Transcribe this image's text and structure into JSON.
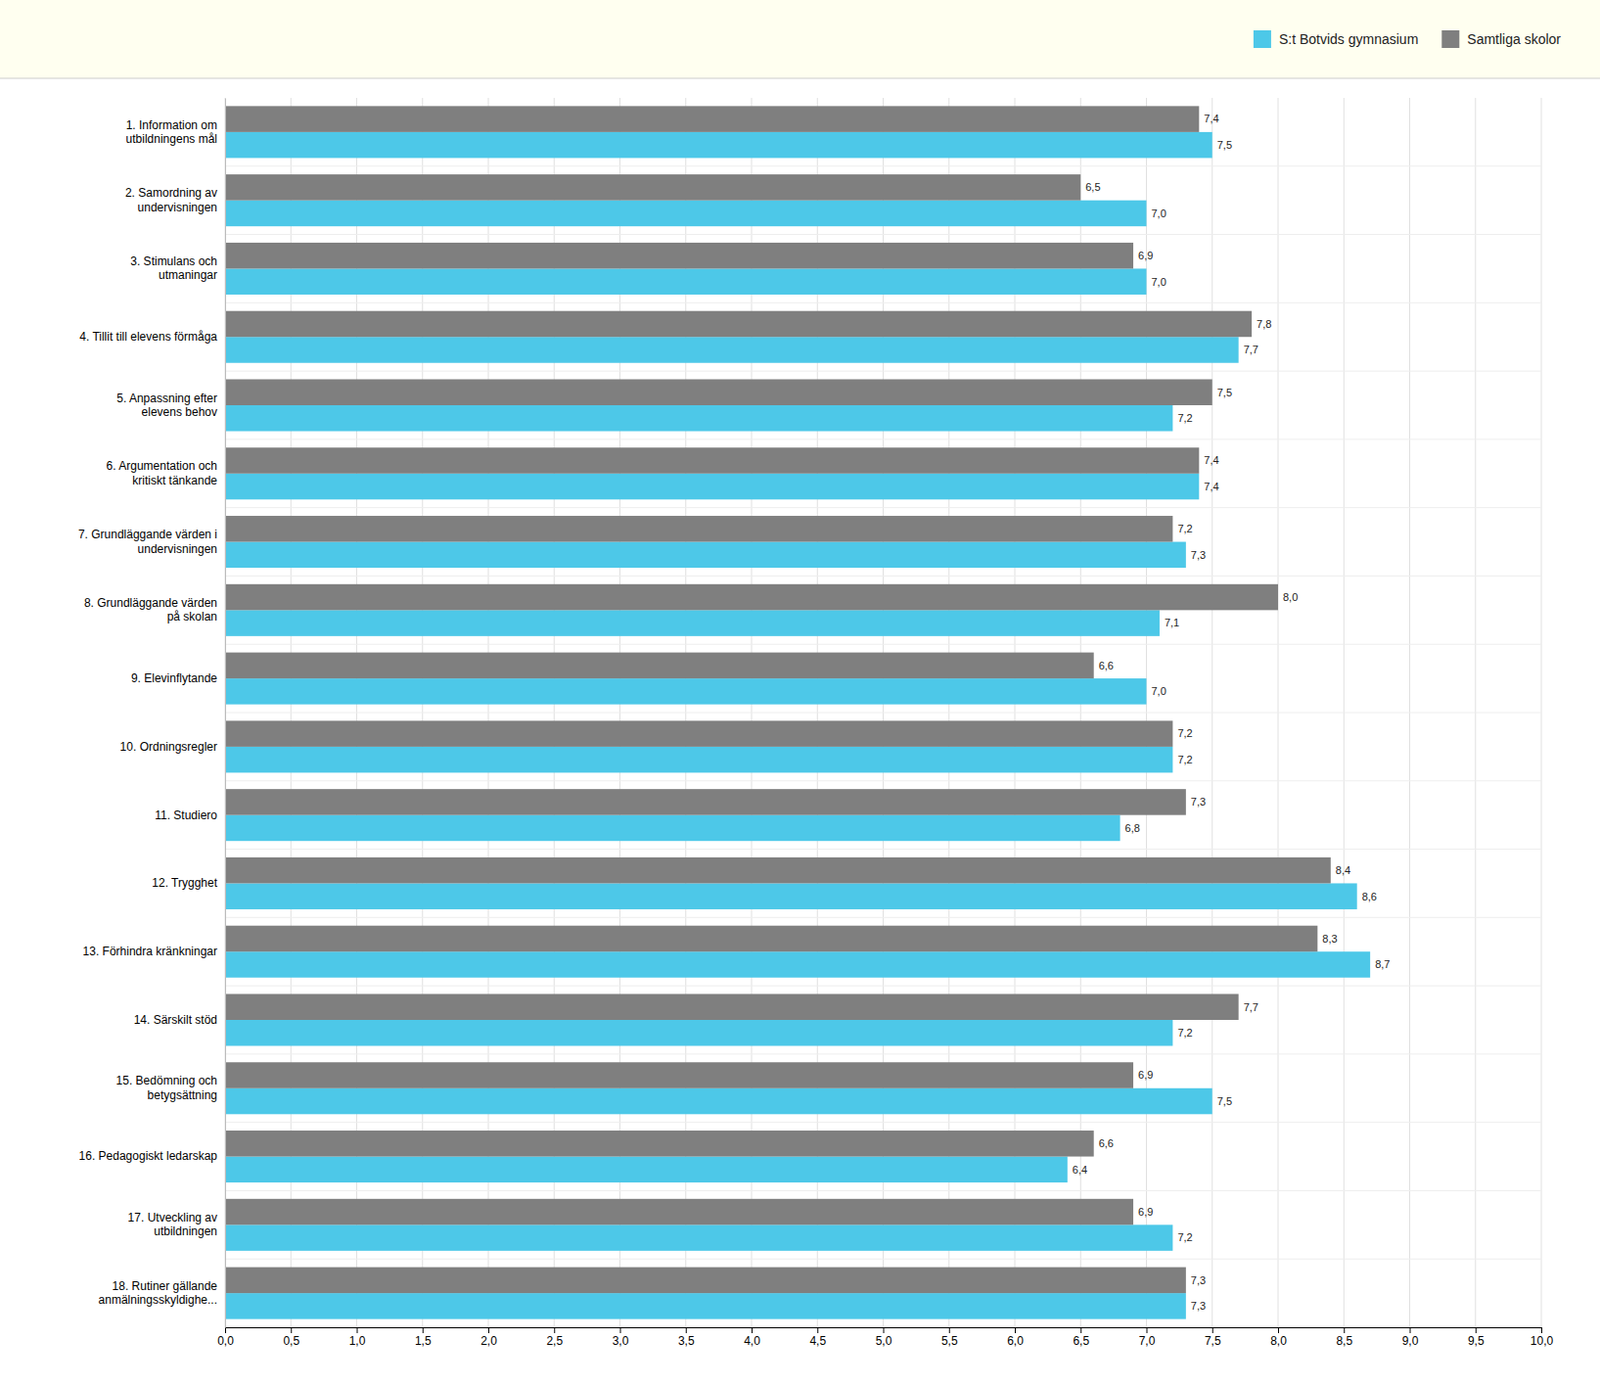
{
  "chart_data": {
    "type": "bar",
    "orientation": "horizontal",
    "categories": [
      "1. Information om\nutbildningens mål",
      "2. Samordning av\nundervisningen",
      "3. Stimulans och\nutmaningar",
      "4. Tillit till elevens förmåga",
      "5. Anpassning efter\nelevens behov",
      "6. Argumentation och\nkritiskt tänkande",
      "7. Grundläggande värden i\nundervisningen",
      "8. Grundläggande värden\npå skolan",
      "9. Elevinflytande",
      "10. Ordningsregler",
      "11. Studiero",
      "12. Trygghet",
      "13. Förhindra kränkningar",
      "14. Särskilt stöd",
      "15. Bedömning och\nbetygsättning",
      "16. Pedagogiskt ledarskap",
      "17. Utveckling av\nutbildningen",
      "18. Rutiner gällande\nanmälningsskyldighe..."
    ],
    "series": [
      {
        "name": "S:t Botvids gymnasium",
        "color": "#4DC8E8",
        "values": [
          7.5,
          7.0,
          7.0,
          7.7,
          7.2,
          7.4,
          7.3,
          7.1,
          7.0,
          7.2,
          6.8,
          8.6,
          8.7,
          7.2,
          7.5,
          6.4,
          7.2,
          7.3
        ],
        "value_labels": [
          "7,5",
          "7,0",
          "7,0",
          "7,7",
          "7,2",
          "7,4",
          "7,3",
          "7,1",
          "7,0",
          "7,2",
          "6,8",
          "8,6",
          "8,7",
          "7,2",
          "7,5",
          "6,4",
          "7,2",
          "7,3"
        ]
      },
      {
        "name": "Samtliga skolor",
        "color": "#7F7F7F",
        "values": [
          7.4,
          6.5,
          6.9,
          7.8,
          7.5,
          7.4,
          7.2,
          8.0,
          6.6,
          7.2,
          7.3,
          8.4,
          8.3,
          7.7,
          6.9,
          6.6,
          6.9,
          7.3
        ],
        "value_labels": [
          "7,4",
          "6,5",
          "6,9",
          "7,8",
          "7,5",
          "7,4",
          "7,2",
          "8,0",
          "6,6",
          "7,2",
          "7,3",
          "8,4",
          "8,3",
          "7,7",
          "6,9",
          "6,6",
          "6,9",
          "7,3"
        ]
      }
    ],
    "xlim": [
      0,
      10
    ],
    "xticks": [
      {
        "value": 0.0,
        "label": "0,0"
      },
      {
        "value": 0.5,
        "label": "0,5"
      },
      {
        "value": 1.0,
        "label": "1,0"
      },
      {
        "value": 1.5,
        "label": "1,5"
      },
      {
        "value": 2.0,
        "label": "2,0"
      },
      {
        "value": 2.5,
        "label": "2,5"
      },
      {
        "value": 3.0,
        "label": "3,0"
      },
      {
        "value": 3.5,
        "label": "3,5"
      },
      {
        "value": 4.0,
        "label": "4,0"
      },
      {
        "value": 4.5,
        "label": "4,5"
      },
      {
        "value": 5.0,
        "label": "5,0"
      },
      {
        "value": 5.5,
        "label": "5,5"
      },
      {
        "value": 6.0,
        "label": "6,0"
      },
      {
        "value": 6.5,
        "label": "6,5"
      },
      {
        "value": 7.0,
        "label": "7,0"
      },
      {
        "value": 7.5,
        "label": "7,5"
      },
      {
        "value": 8.0,
        "label": "8,0"
      },
      {
        "value": 8.5,
        "label": "8,5"
      },
      {
        "value": 9.0,
        "label": "9,0"
      },
      {
        "value": 9.5,
        "label": "9,5"
      },
      {
        "value": 10.0,
        "label": "10,0"
      }
    ],
    "grid": true,
    "legend": "top right",
    "data_labels": true
  }
}
